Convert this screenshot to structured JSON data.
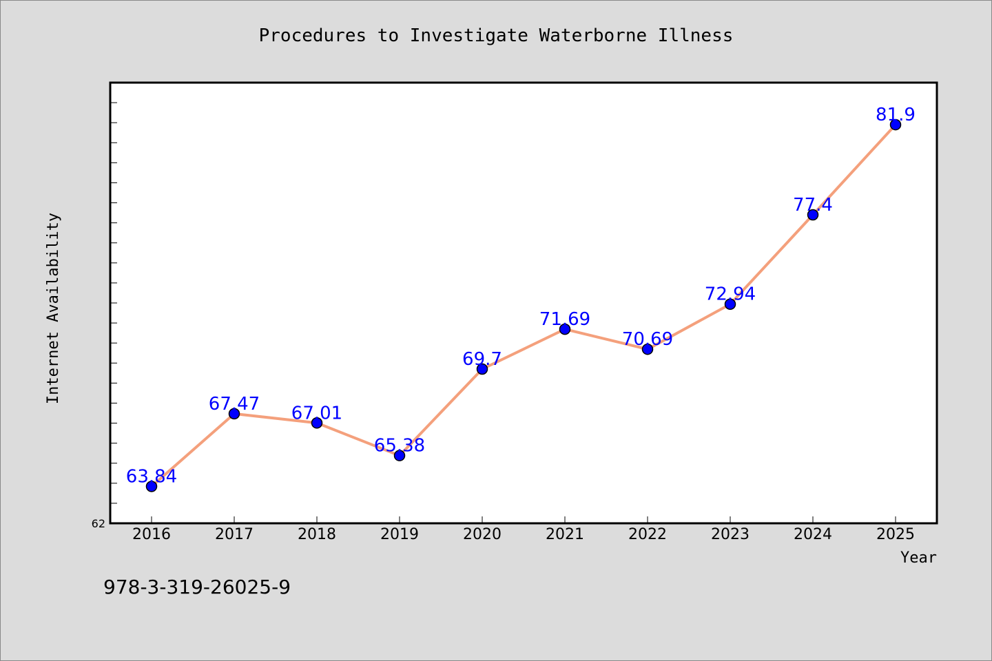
{
  "chart_data": {
    "type": "line",
    "title": "Procedures to Investigate Waterborne Illness",
    "xlabel": "Year",
    "ylabel": "Internet Availability",
    "categories": [
      "2016",
      "2017",
      "2018",
      "2019",
      "2020",
      "2021",
      "2022",
      "2023",
      "2024",
      "2025"
    ],
    "series": [
      {
        "values": [
          63.84,
          67.47,
          67.01,
          65.38,
          69.7,
          71.69,
          70.69,
          72.94,
          77.4,
          81.9
        ],
        "labels": [
          "63.84",
          "67.47",
          "67.01",
          "65.38",
          "69.7",
          "71.69",
          "70.69",
          "72.94",
          "77.4",
          "81.9"
        ]
      }
    ],
    "ylim": [
      62,
      84
    ],
    "y_tick_min_label": "62",
    "grid": false,
    "colors": {
      "line": "#f4a07c",
      "marker": "#0000ff",
      "labels": "#0000ff",
      "plot_bg": "#ffffff",
      "page_bg": "#dcdcdc"
    }
  },
  "footer": {
    "isbn": "978-3-319-26025-9"
  }
}
